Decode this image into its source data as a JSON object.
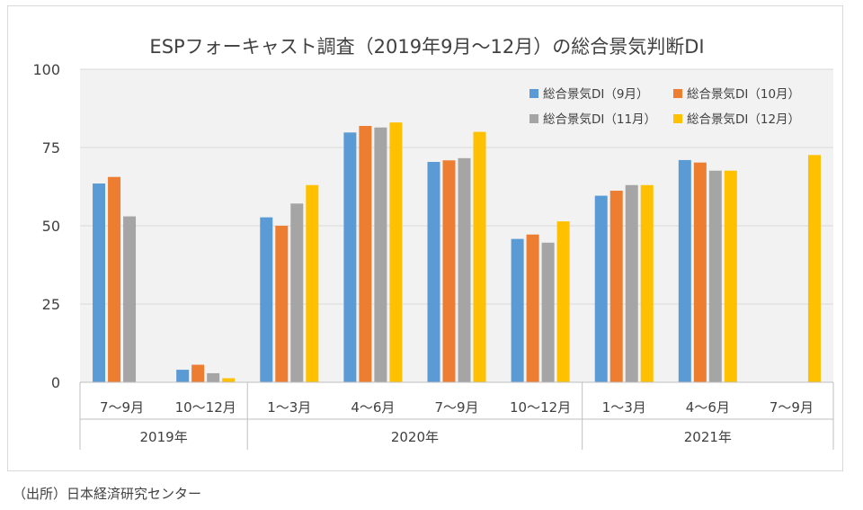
{
  "source_note": "（出所）日本経済研究センター",
  "chart_data": {
    "type": "bar",
    "title": "ESPフォーキャスト調査（2019年9月～12月）の総合景気判断DI",
    "xlabel": "",
    "ylabel": "",
    "ylim": [
      0,
      100
    ],
    "yticks": [
      0,
      25,
      50,
      75,
      100
    ],
    "grid": true,
    "legend_position": "top-right",
    "categories": [
      "7～9月",
      "10～12月",
      "1～3月",
      "4～6月",
      "7～9月",
      "10～12月",
      "1～3月",
      "4～6月",
      "7～9月"
    ],
    "year_groups": [
      {
        "label": "2019年",
        "span": 2
      },
      {
        "label": "2020年",
        "span": 4
      },
      {
        "label": "2021年",
        "span": 3
      }
    ],
    "series": [
      {
        "name": "総合景気DI（9月）",
        "color": "#5b9bd5",
        "values": [
          63.5,
          4.0,
          52.7,
          79.8,
          70.4,
          45.8,
          59.6,
          71.0,
          null
        ]
      },
      {
        "name": "総合景気DI（10月）",
        "color": "#ed7d31",
        "values": [
          65.6,
          5.6,
          50.0,
          81.9,
          70.9,
          47.2,
          61.2,
          70.2,
          null
        ]
      },
      {
        "name": "総合景気DI（11月）",
        "color": "#a5a5a5",
        "values": [
          53.0,
          2.9,
          57.1,
          81.4,
          71.6,
          44.6,
          63.0,
          67.6,
          null
        ]
      },
      {
        "name": "総合景気DI（12月）",
        "color": "#ffc000",
        "values": [
          null,
          1.3,
          63.0,
          83.0,
          80.0,
          51.4,
          63.0,
          67.6,
          72.6
        ]
      }
    ]
  }
}
